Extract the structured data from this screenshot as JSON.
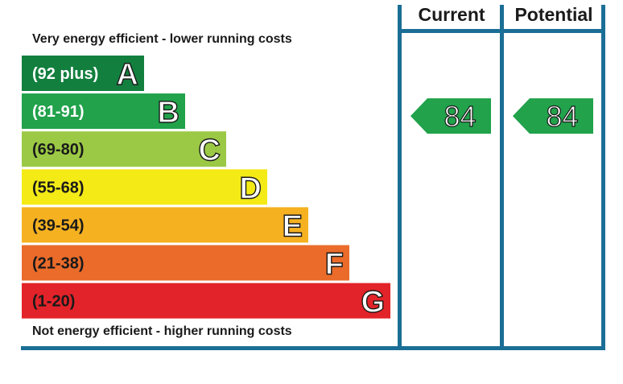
{
  "chart_data": {
    "type": "bar",
    "top_note": "Very energy efficient - lower running costs",
    "bottom_note": "Not energy efficient - higher running costs",
    "columns": [
      "Current",
      "Potential"
    ],
    "bands": [
      {
        "range": "(92 plus)",
        "letter": "A",
        "color": "#127f3e",
        "text_color": "#ffffff"
      },
      {
        "range": "(81-91)",
        "letter": "B",
        "color": "#21a24b",
        "text_color": "#ffffff"
      },
      {
        "range": "(69-80)",
        "letter": "C",
        "color": "#9bc945",
        "text_color": "#1a1a1a"
      },
      {
        "range": "(55-68)",
        "letter": "D",
        "color": "#f4ea16",
        "text_color": "#1a1a1a"
      },
      {
        "range": "(39-54)",
        "letter": "E",
        "color": "#f6b121",
        "text_color": "#1a1a1a"
      },
      {
        "range": "(21-38)",
        "letter": "F",
        "color": "#ea6b2a",
        "text_color": "#1a1a1a"
      },
      {
        "range": "(1-20)",
        "letter": "G",
        "color": "#e22329",
        "text_color": "#1a1a1a"
      }
    ],
    "current": {
      "value": 84,
      "band": "B",
      "color": "#21a24b"
    },
    "potential": {
      "value": 84,
      "band": "B",
      "color": "#21a24b"
    },
    "frame_color": "#1b6e95"
  }
}
